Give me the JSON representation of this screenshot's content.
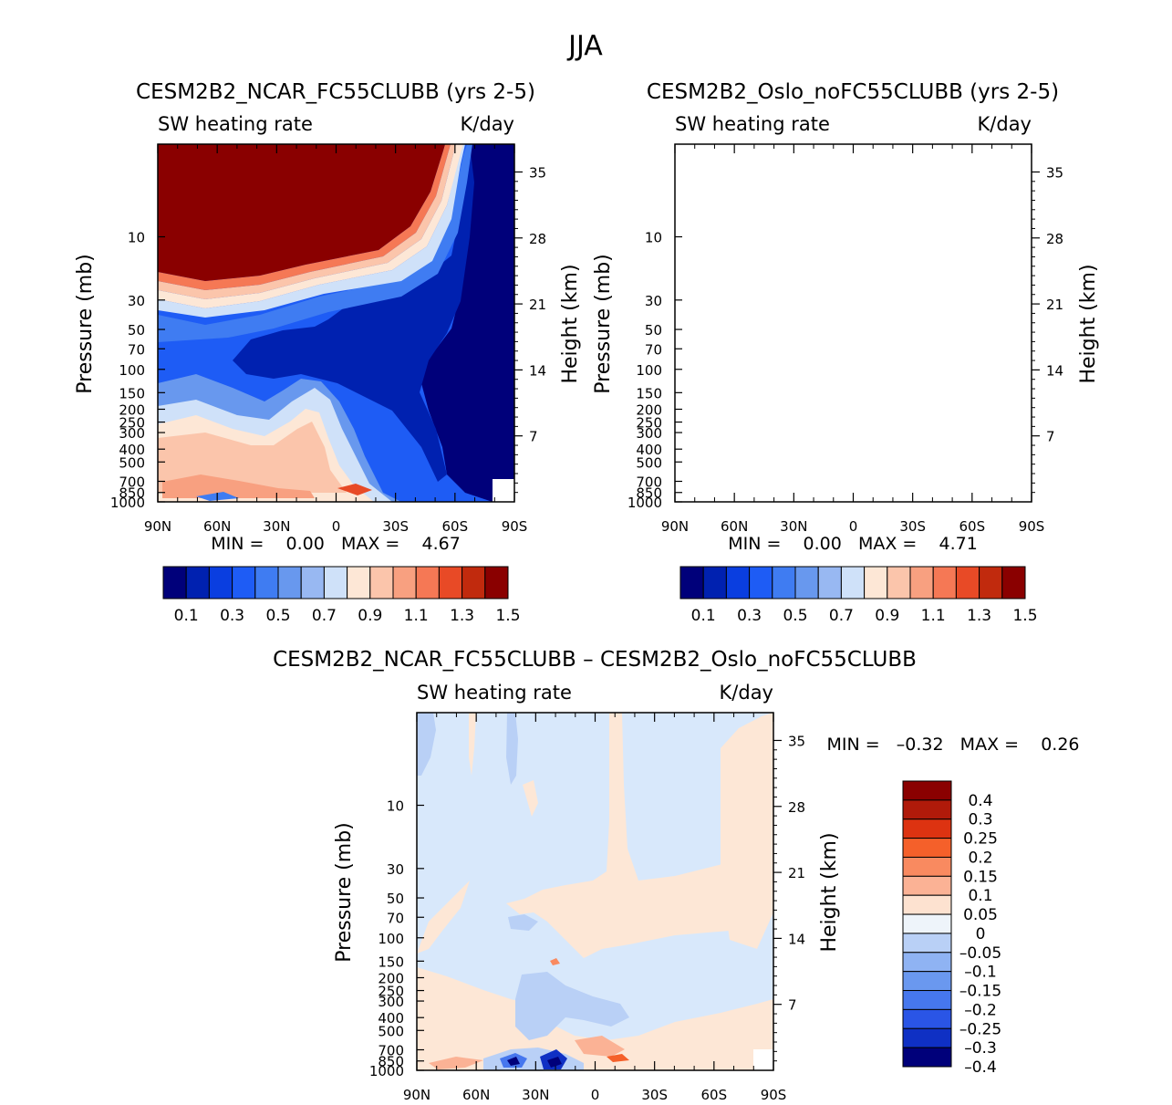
{
  "page": {
    "title": "JJA",
    "top_left": {
      "title": "CESM2B2_NCAR_FC55CLUBB (yrs 2-5)",
      "left_label": "SW heating rate",
      "right_label": "K/day",
      "stats": "MIN =    0.00   MAX =    4.67"
    },
    "top_right": {
      "title": "CESM2B2_Oslo_noFC55CLUBB (yrs 2-5)",
      "left_label": "SW heating rate",
      "right_label": "K/day",
      "stats": "MIN =    0.00   MAX =    4.71"
    },
    "bottom": {
      "title": "CESM2B2_NCAR_FC55CLUBB – CESM2B2_Oslo_noFC55CLUBB",
      "left_label": "SW heating rate",
      "right_label": "K/day",
      "stats": "MIN =   –0.32   MAX =    0.26"
    },
    "y_axis_title": "Pressure (mb)",
    "y2_axis_title": "Height (km)"
  },
  "chart_data": [
    {
      "type": "heatmap",
      "title": "CESM2B2_NCAR_FC55CLUBB (yrs 2-5)",
      "variable": "SW heating rate",
      "units": "K/day",
      "x_ticks": [
        "90N",
        "60N",
        "30N",
        "0",
        "30S",
        "60S",
        "90S"
      ],
      "y_ticks": [
        "10",
        "30",
        "50",
        "70",
        "100",
        "150",
        "200",
        "250",
        "300",
        "400",
        "500",
        "700",
        "850",
        "1000"
      ],
      "y2_ticks": [
        "35",
        "28",
        "21",
        "14",
        "7"
      ],
      "xlabel": "",
      "ylabel": "Pressure (mb)",
      "y2label": "Height (km)",
      "min": 0.0,
      "max": 4.67,
      "colorbar_labels": [
        "0.1",
        "0.3",
        "0.5",
        "0.7",
        "0.9",
        "1.1",
        "1.3",
        "1.5"
      ],
      "colorbar_levels": [
        0.1,
        0.2,
        0.3,
        0.4,
        0.5,
        0.6,
        0.7,
        0.8,
        0.9,
        1.0,
        1.1,
        1.2,
        1.3,
        1.4,
        1.5
      ]
    },
    {
      "type": "heatmap",
      "title": "CESM2B2_Oslo_noFC55CLUBB (yrs 2-5)",
      "variable": "SW heating rate",
      "units": "K/day",
      "x_ticks": [
        "90N",
        "60N",
        "30N",
        "0",
        "30S",
        "60S",
        "90S"
      ],
      "y_ticks": [
        "10",
        "30",
        "50",
        "70",
        "100",
        "150",
        "200",
        "250",
        "300",
        "400",
        "500",
        "700",
        "850",
        "1000"
      ],
      "y2_ticks": [
        "35",
        "28",
        "21",
        "14",
        "7"
      ],
      "xlabel": "",
      "ylabel": "Pressure (mb)",
      "y2label": "Height (km)",
      "min": 0.0,
      "max": 4.71,
      "colorbar_labels": [
        "0.1",
        "0.3",
        "0.5",
        "0.7",
        "0.9",
        "1.1",
        "1.3",
        "1.5"
      ],
      "colorbar_levels": [
        0.1,
        0.2,
        0.3,
        0.4,
        0.5,
        0.6,
        0.7,
        0.8,
        0.9,
        1.0,
        1.1,
        1.2,
        1.3,
        1.4,
        1.5
      ]
    },
    {
      "type": "heatmap",
      "title": "CESM2B2_NCAR_FC55CLUBB – CESM2B2_Oslo_noFC55CLUBB",
      "variable": "SW heating rate",
      "units": "K/day",
      "x_ticks": [
        "90N",
        "60N",
        "30N",
        "0",
        "30S",
        "60S",
        "90S"
      ],
      "y_ticks": [
        "10",
        "30",
        "50",
        "70",
        "100",
        "150",
        "200",
        "250",
        "300",
        "400",
        "500",
        "700",
        "850",
        "1000"
      ],
      "y2_ticks": [
        "35",
        "28",
        "21",
        "14",
        "7"
      ],
      "xlabel": "",
      "ylabel": "Pressure (mb)",
      "y2label": "Height (km)",
      "min": -0.32,
      "max": 0.26,
      "colorbar_labels": [
        "0.4",
        "0.3",
        "0.25",
        "0.2",
        "0.15",
        "0.1",
        "0.05",
        "0",
        "–0.05",
        "–0.1",
        "–0.15",
        "–0.2",
        "–0.25",
        "–0.3",
        "–0.4"
      ]
    }
  ],
  "colors": {
    "seq_palette": [
      "#00007a",
      "#0021b0",
      "#0a3ee0",
      "#1e5cf5",
      "#3f7cf2",
      "#6898ee",
      "#98b8f2",
      "#cfe1f9",
      "#fde7d6",
      "#fbc5ab",
      "#f8a080",
      "#f57855",
      "#e84a26",
      "#c12a0d",
      "#8a0000"
    ],
    "diff_palette": [
      "#8a0000",
      "#b01a0a",
      "#dd3311",
      "#f5602a",
      "#f98a60",
      "#fbb295",
      "#fde2d0",
      "#eef4fa",
      "#b9d0f6",
      "#8fb3f3",
      "#6a98ef",
      "#4677ee",
      "#2a55e6",
      "#0f30c4",
      "#00007a"
    ]
  }
}
